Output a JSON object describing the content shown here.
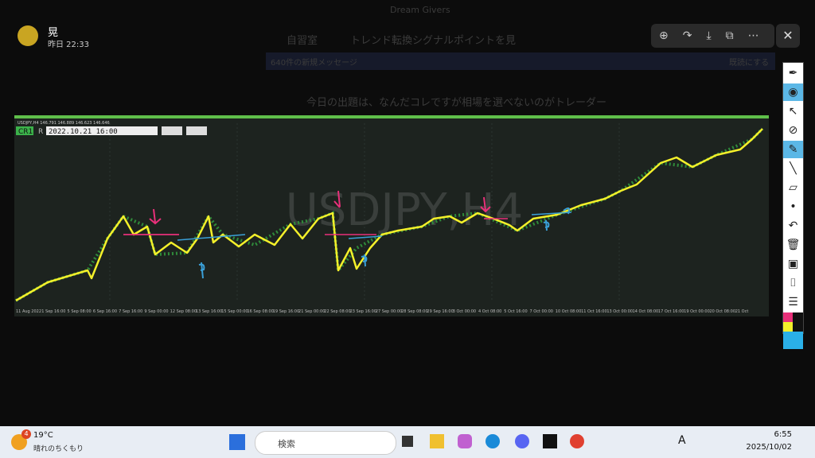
{
  "window": {
    "title": "Dream Givers",
    "user": "晃",
    "time": "昨日 22:33"
  },
  "header": {
    "channel": "自習室",
    "thread": "トレンド転換シグナルポイントを見",
    "new_messages": "640件の新規メッセージ",
    "mark_read": "既読にする"
  },
  "message": {
    "text": "今日の出題は、なんだコレですが相場を選べないのがトレーダー"
  },
  "chart": {
    "symbol_header": "USDJPY,H4  146.791 146.889 146.623 146.646",
    "watermark": "USDJPY,H4",
    "badge": "CR1",
    "badge2": "R",
    "datetime": "2022.10.21 16:00",
    "x_labels": [
      "11 Aug 2022",
      "1 Sep 16:00",
      "5 Sep 08:00",
      "6 Sep 16:00",
      "7 Sep 16:00",
      "9 Sep 00:00",
      "12 Sep 08:00",
      "13 Sep 16:00",
      "15 Sep 00:00",
      "16 Sep 08:00",
      "19 Sep 16:00",
      "21 Sep 00:00",
      "22 Sep 08:00",
      "23 Sep 16:00",
      "27 Sep 00:00",
      "28 Sep 08:00",
      "29 Sep 16:00",
      "3 Oct 00:00",
      "4 Oct 08:00",
      "5 Oct 16:00",
      "7 Oct 00:00",
      "10 Oct 08:00",
      "11 Oct 16:00",
      "13 Oct 00:00",
      "14 Oct 08:00",
      "17 Oct 16:00",
      "19 Oct 00:00",
      "20 Oct 08:00",
      "21 Oct"
    ]
  },
  "taskbar": {
    "temperature": "19°C",
    "weather": "晴れのちくもり",
    "search": "検索",
    "notification_count": "4",
    "ime": "A",
    "clock": "6:55",
    "date": "2025/10/02"
  }
}
